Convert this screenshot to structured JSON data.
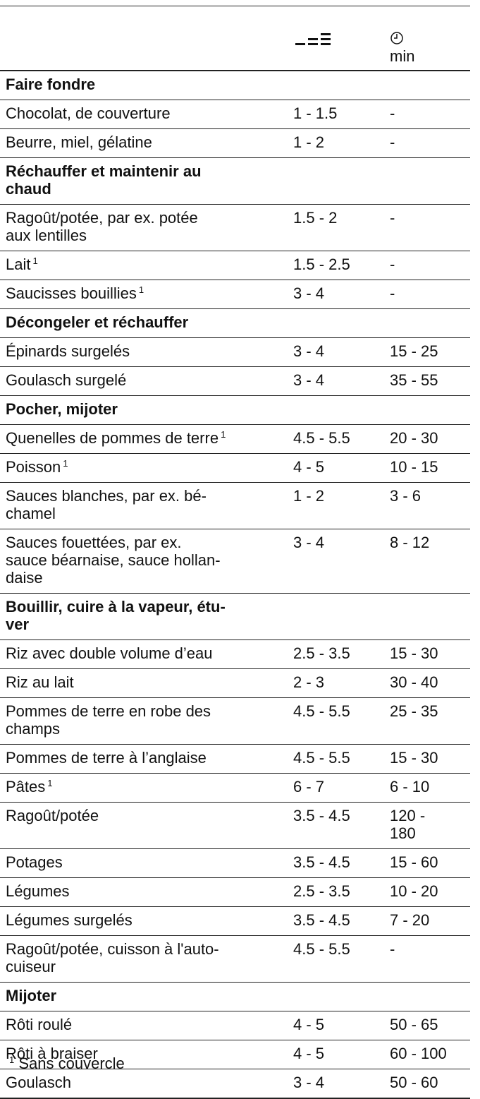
{
  "table": {
    "header": {
      "time_unit": "min"
    },
    "rows": [
      {
        "section": "Faire fondre"
      },
      {
        "label": "Chocolat, de couverture",
        "level": "1 - 1.5",
        "time": "-"
      },
      {
        "label": "Beurre, miel, gélatine",
        "level": "1 - 2",
        "time": "-"
      },
      {
        "section": "Réchauffer et maintenir au\nchaud"
      },
      {
        "label": "Ragoût/potée, par ex. potée\naux lentilles",
        "level": "1.5 - 2",
        "time": "-"
      },
      {
        "label": "Lait",
        "note": "1",
        "level": "1.5 - 2.5",
        "time": "-"
      },
      {
        "label": "Saucisses bouillies",
        "note": "1",
        "level": "3 - 4",
        "time": "-"
      },
      {
        "section": "Décongeler et réchauffer"
      },
      {
        "label": "Épinards surgelés",
        "level": "3 - 4",
        "time": "15 - 25"
      },
      {
        "label": "Goulasch surgelé",
        "level": "3 - 4",
        "time": "35 - 55"
      },
      {
        "section": "Pocher, mijoter"
      },
      {
        "label": "Quenelles de pommes de terre",
        "note": "1",
        "level": "4.5 - 5.5",
        "time": "20 - 30"
      },
      {
        "label": "Poisson",
        "note": "1",
        "level": "4 - 5",
        "time": "10 - 15"
      },
      {
        "label": "Sauces blanches, par ex. bé-\nchamel",
        "level": "1 - 2",
        "time": "3 - 6"
      },
      {
        "label": "Sauces fouettées, par ex.\nsauce béarnaise, sauce hollan-\ndaise",
        "level": "3 - 4",
        "time": "8 - 12"
      },
      {
        "section": "Bouillir, cuire à la vapeur, étu-\nver"
      },
      {
        "label": "Riz avec double volume d’eau",
        "level": "2.5 - 3.5",
        "time": "15 - 30"
      },
      {
        "label": "Riz au lait",
        "level": "2 - 3",
        "time": "30 - 40"
      },
      {
        "label": "Pommes de terre en robe des\nchamps",
        "level": "4.5 - 5.5",
        "time": "25 - 35"
      },
      {
        "label": "Pommes de terre à l’anglaise",
        "level": "4.5 - 5.5",
        "time": "15 - 30"
      },
      {
        "label": "Pâtes",
        "note": "1",
        "level": "6 - 7",
        "time": "6 - 10"
      },
      {
        "label": "Ragoût/potée",
        "level": "3.5 - 4.5",
        "time": "120 -\n180"
      },
      {
        "label": "Potages",
        "level": "3.5 - 4.5",
        "time": "15 - 60"
      },
      {
        "label": "Légumes",
        "level": "2.5 - 3.5",
        "time": "10 - 20"
      },
      {
        "label": "Légumes surgelés",
        "level": "3.5 - 4.5",
        "time": "7 - 20"
      },
      {
        "label": "Ragoût/potée, cuisson à l'auto-\ncuiseur",
        "level": "4.5 - 5.5",
        "time": "-"
      },
      {
        "section": "Mijoter"
      },
      {
        "label": "Rôti roulé",
        "level": "4 - 5",
        "time": "50 - 65"
      },
      {
        "label": "Rôti à braiser",
        "level": "4 - 5",
        "time": "60 - 100"
      },
      {
        "label": "Goulasch",
        "level": "3 - 4",
        "time": "50 - 60"
      }
    ],
    "footnote": {
      "mark": "1",
      "text": "Sans couvercle"
    }
  }
}
